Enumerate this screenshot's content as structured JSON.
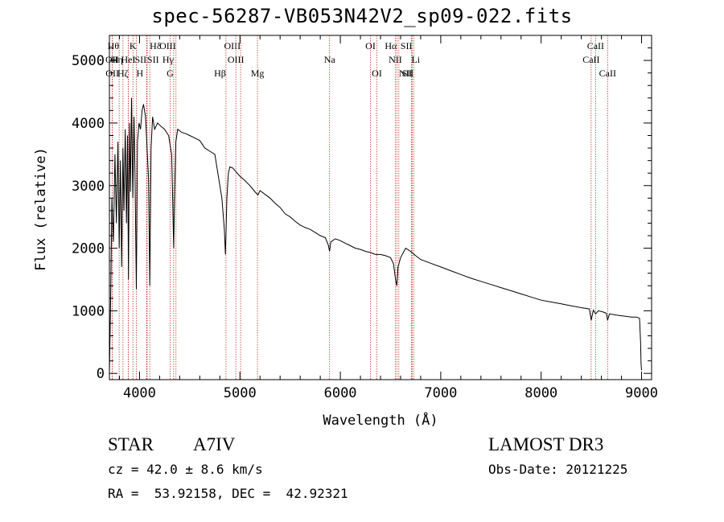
{
  "chart_data": {
    "type": "line",
    "title": "spec-56287-VB053N42V2_sp09-022.fits",
    "xlabel": "Wavelength (Å)",
    "ylabel": "Flux (relative)",
    "xlim": [
      3700,
      9100
    ],
    "ylim": [
      -100,
      5400
    ],
    "x_ticks": [
      4000,
      5000,
      6000,
      7000,
      8000,
      9000
    ],
    "x_tick_labels": [
      "4000",
      "5000",
      "6000",
      "7000",
      "8000",
      "9000"
    ],
    "y_ticks": [
      0,
      1000,
      2000,
      3000,
      4000,
      5000
    ],
    "y_tick_labels": [
      "0",
      "1000",
      "2000",
      "3000",
      "4000",
      "5000"
    ],
    "series": [
      {
        "name": "spectrum",
        "x": [
          3700,
          3712,
          3725,
          3740,
          3755,
          3770,
          3785,
          3798,
          3810,
          3822,
          3835,
          3845,
          3858,
          3870,
          3880,
          3890,
          3900,
          3910,
          3920,
          3933,
          3945,
          3955,
          3968,
          3980,
          3995,
          4010,
          4025,
          4040,
          4060,
          4075,
          4090,
          4102,
          4115,
          4130,
          4150,
          4180,
          4210,
          4250,
          4290,
          4320,
          4330,
          4340,
          4350,
          4362,
          4380,
          4420,
          4460,
          4500,
          4550,
          4600,
          4650,
          4700,
          4750,
          4780,
          4820,
          4845,
          4855,
          4861,
          4870,
          4885,
          4900,
          4930,
          4960,
          5000,
          5050,
          5100,
          5150,
          5180,
          5200,
          5250,
          5300,
          5350,
          5400,
          5450,
          5500,
          5550,
          5600,
          5650,
          5700,
          5750,
          5800,
          5850,
          5880,
          5893,
          5905,
          5950,
          6000,
          6050,
          6100,
          6150,
          6200,
          6250,
          6300,
          6350,
          6400,
          6450,
          6500,
          6530,
          6550,
          6563,
          6575,
          6600,
          6650,
          6700,
          6750,
          6800,
          6900,
          7000,
          7100,
          7200,
          7300,
          7400,
          7500,
          7600,
          7700,
          7800,
          7900,
          8000,
          8100,
          8200,
          8300,
          8400,
          8480,
          8498,
          8520,
          8542,
          8570,
          8620,
          8650,
          8662,
          8680,
          8720,
          8750,
          8800,
          8850,
          8900,
          8950,
          8980,
          8990,
          8995,
          9000
        ],
        "y": [
          0,
          1150,
          2800,
          2100,
          3500,
          2400,
          3700,
          2000,
          3400,
          1700,
          3600,
          2600,
          3900,
          2400,
          3800,
          1500,
          4000,
          2900,
          4400,
          2800,
          4100,
          3200,
          1350,
          3700,
          4000,
          3900,
          4200,
          4300,
          4100,
          3600,
          3100,
          1400,
          3600,
          4100,
          3900,
          4000,
          3950,
          3900,
          3800,
          3500,
          2800,
          2000,
          2900,
          3700,
          3900,
          3850,
          3830,
          3800,
          3760,
          3720,
          3600,
          3550,
          3500,
          3200,
          2800,
          2300,
          1900,
          2200,
          2800,
          3200,
          3300,
          3280,
          3220,
          3150,
          3080,
          3000,
          2900,
          2850,
          2920,
          2860,
          2800,
          2720,
          2650,
          2550,
          2500,
          2430,
          2370,
          2330,
          2300,
          2250,
          2200,
          2170,
          2050,
          1950,
          2100,
          2150,
          2120,
          2080,
          2040,
          2000,
          1980,
          1950,
          1930,
          1900,
          1900,
          1880,
          1850,
          1750,
          1500,
          1400,
          1700,
          1850,
          2000,
          1950,
          1880,
          1820,
          1760,
          1700,
          1640,
          1580,
          1520,
          1470,
          1420,
          1370,
          1320,
          1270,
          1220,
          1170,
          1140,
          1110,
          1080,
          1050,
          1030,
          850,
          1010,
          950,
          1000,
          980,
          960,
          850,
          950,
          940,
          930,
          920,
          910,
          900,
          900,
          880,
          500,
          150,
          50
        ]
      }
    ],
    "line_markers": [
      {
        "name": "Hθ",
        "x": 3797,
        "row": 1,
        "align": "end"
      },
      {
        "name": "OII",
        "x": 3727,
        "row": 2,
        "align": "middle"
      },
      {
        "name": "OII",
        "x": 3729,
        "row": 3,
        "align": "middle"
      },
      {
        "name": "Hη",
        "x": 3835,
        "row": 2,
        "align": "end"
      },
      {
        "name": "Hζ",
        "x": 3889,
        "row": 3,
        "align": "end"
      },
      {
        "name": "K",
        "x": 3934,
        "row": 1,
        "align": "middle"
      },
      {
        "name": "HeI",
        "x": 3888,
        "row": 2,
        "align": "middle"
      },
      {
        "name": "SII",
        "x": 4070,
        "row": 2,
        "align": "end"
      },
      {
        "name": "H",
        "x": 3968,
        "row": 3,
        "align": "start"
      },
      {
        "name": "Hδ",
        "x": 4102,
        "row": 1,
        "align": "start"
      },
      {
        "name": "SII",
        "x": 4076,
        "row": 2,
        "align": "start"
      },
      {
        "name": "OIII",
        "x": 4363,
        "row": 1,
        "align": "end"
      },
      {
        "name": "Hγ",
        "x": 4340,
        "row": 2,
        "align": "end"
      },
      {
        "name": "G",
        "x": 4305,
        "row": 3,
        "align": "middle"
      },
      {
        "name": "OIII",
        "x": 5007,
        "row": 1,
        "align": "end"
      },
      {
        "name": "OIII",
        "x": 4959,
        "row": 2,
        "align": "middle"
      },
      {
        "name": "Hβ",
        "x": 4861,
        "row": 3,
        "align": "end"
      },
      {
        "name": "Mg",
        "x": 5175,
        "row": 3,
        "align": "middle"
      },
      {
        "name": "Na",
        "x": 5893,
        "row": 2,
        "align": "middle"
      },
      {
        "name": "OI",
        "x": 6300,
        "row": 1,
        "align": "middle"
      },
      {
        "name": "OI",
        "x": 6364,
        "row": 3,
        "align": "middle"
      },
      {
        "name": "Hα",
        "x": 6563,
        "row": 1,
        "align": "end"
      },
      {
        "name": "SII",
        "x": 6716,
        "row": 1,
        "align": "end"
      },
      {
        "name": "NII",
        "x": 6548,
        "row": 2,
        "align": "middle"
      },
      {
        "name": "Li",
        "x": 6708,
        "row": 2,
        "align": "start"
      },
      {
        "name": "NII",
        "x": 6583,
        "row": 3,
        "align": "start"
      },
      {
        "name": "SII",
        "x": 6731,
        "row": 3,
        "align": "end"
      },
      {
        "name": "CaII",
        "x": 8542,
        "row": 1,
        "align": "middle"
      },
      {
        "name": "CaII",
        "x": 8498,
        "row": 2,
        "align": "middle"
      },
      {
        "name": "CaII",
        "x": 8662,
        "row": 3,
        "align": "middle"
      }
    ]
  },
  "info": {
    "class": "STAR",
    "subclass": "A7IV",
    "survey": "LAMOST DR3",
    "cz": "cz = 42.0 ± 8.6 km/s",
    "obs_date": "Obs-Date: 20121225",
    "radec": "RA =  53.92158, DEC =  42.92321"
  }
}
